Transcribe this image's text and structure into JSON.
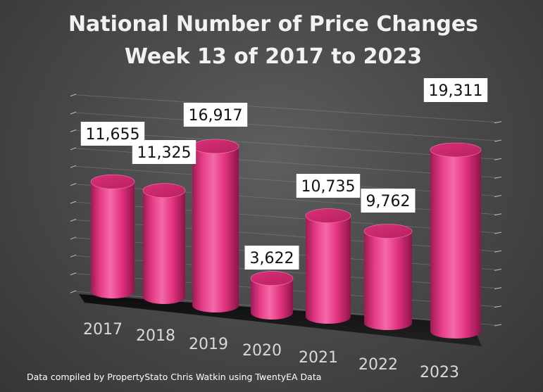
{
  "chart_data": {
    "type": "bar",
    "title_lines": [
      "National Number of Price Changes",
      "Week 13 of 2017 to 2023"
    ],
    "categories": [
      "2017",
      "2018",
      "2019",
      "2020",
      "2021",
      "2022",
      "2023"
    ],
    "series": [
      {
        "values": [
          11655,
          11325,
          16917,
          3622,
          10735,
          9762,
          19311
        ]
      }
    ],
    "value_labels": [
      "11,655",
      "11,325",
      "16,917",
      "3,622",
      "10,735",
      "9,762",
      "19,311"
    ],
    "ylim": [
      0,
      22000
    ],
    "grid": true,
    "legend": "none",
    "bar_shape": "cylinder-3d",
    "bar_color": "#e8357f",
    "footnote": "Data compiled by PropertyStato Chris Watkin using TwentyEA Data"
  }
}
